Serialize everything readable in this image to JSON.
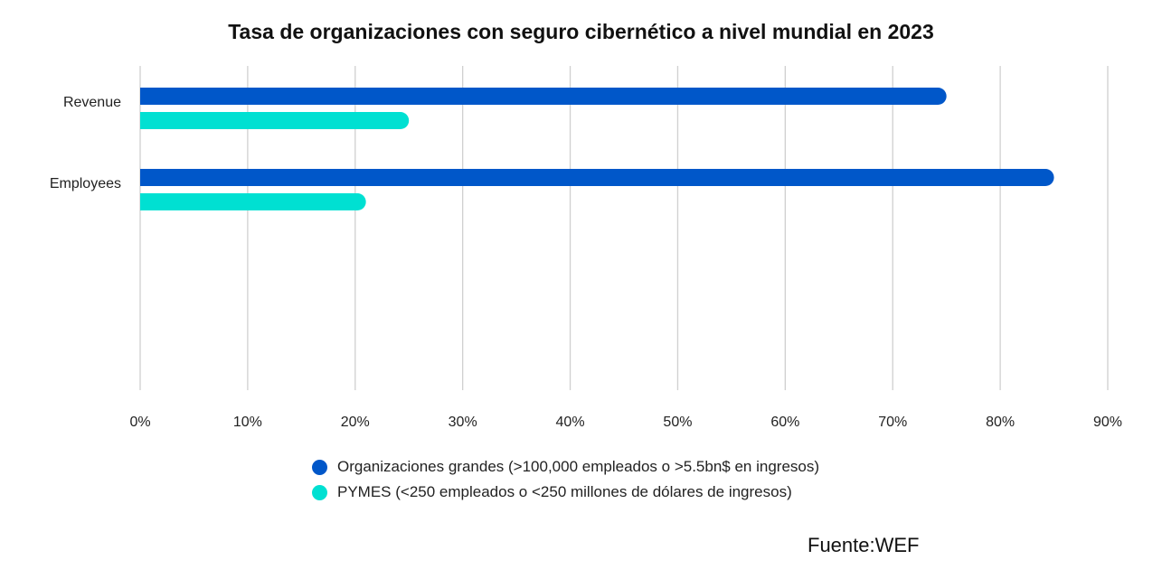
{
  "chart_data": {
    "type": "bar",
    "orientation": "horizontal",
    "title": "Tasa de organizaciones con seguro cibernético a nivel mundial en 2023",
    "categories": [
      "Revenue",
      "Employees"
    ],
    "series": [
      {
        "name": "Organizaciones grandes (>100,000 empleados o >5.5bn$ en ingresos)",
        "color": "#0057C9",
        "values": [
          75,
          85
        ]
      },
      {
        "name": "PYMES (<250 empleados o <250 millones de dólares de ingresos)",
        "color": "#00E0D2",
        "values": [
          25,
          21
        ]
      }
    ],
    "xlim": [
      0,
      90
    ],
    "x_ticks": [
      0,
      10,
      20,
      30,
      40,
      50,
      60,
      70,
      80,
      90
    ],
    "x_tick_labels": [
      "0%",
      "10%",
      "20%",
      "30%",
      "40%",
      "50%",
      "60%",
      "70%",
      "80%",
      "90%"
    ],
    "xlabel": "",
    "ylabel": "",
    "grid": true,
    "legend_position": "bottom",
    "source": "Fuente:WEF"
  }
}
